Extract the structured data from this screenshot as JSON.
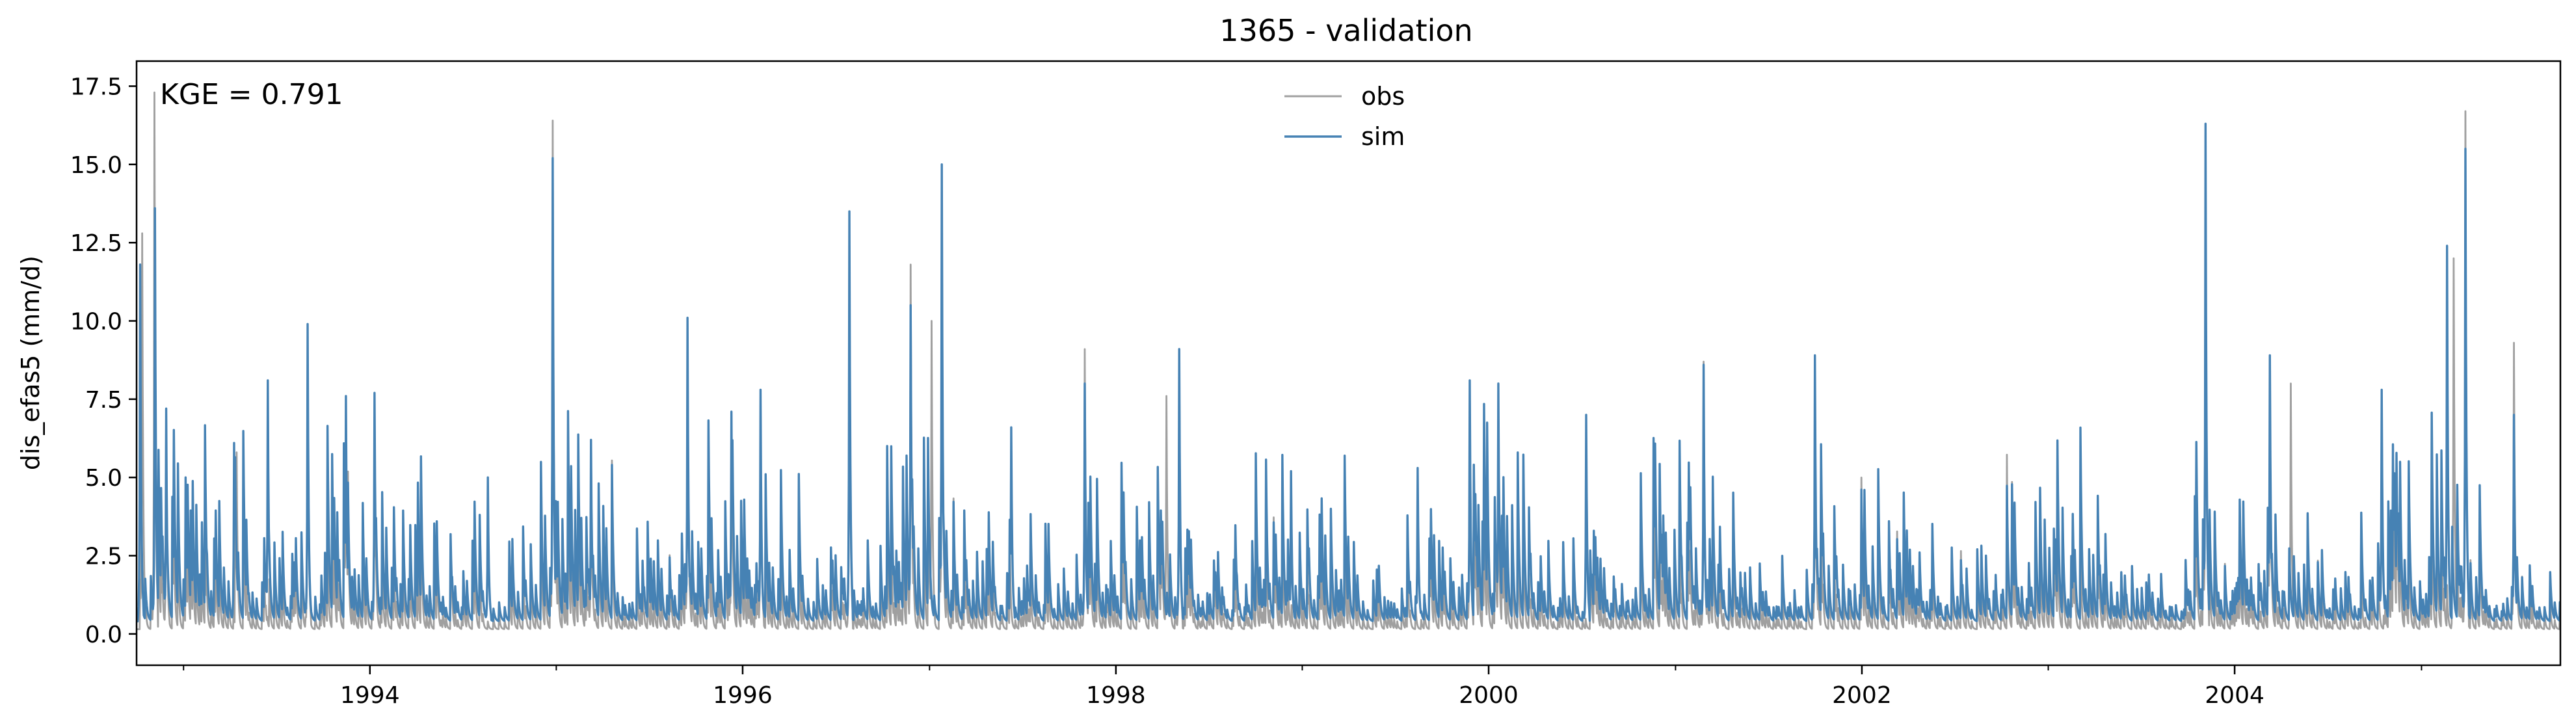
{
  "chart_data": {
    "type": "line",
    "title": "1365 - validation",
    "xlabel": "",
    "ylabel": "dis_efas5 (mm/d)",
    "xlim": [
      "1992-10-01",
      "2005-09-30"
    ],
    "ylim": [
      -1.0,
      18.3
    ],
    "yticks": [
      0.0,
      2.5,
      5.0,
      7.5,
      10.0,
      12.5,
      15.0,
      17.5
    ],
    "ytick_labels": [
      "0.0",
      "2.5",
      "5.0",
      "7.5",
      "10.0",
      "12.5",
      "15.0",
      "17.5"
    ],
    "xticks": [
      "1994-01-01",
      "1996-01-01",
      "1998-01-01",
      "2000-01-01",
      "2002-01-01",
      "2004-01-01"
    ],
    "xtick_labels": [
      "1994",
      "1996",
      "1998",
      "2000",
      "2002",
      "2004"
    ],
    "grid": false,
    "legend": "top-center",
    "annotation": "KGE = 0.791",
    "series": [
      {
        "name": "obs",
        "color": "#a0a0a0",
        "baseline": 0.15,
        "peaks": [
          {
            "x": "1992-10-12",
            "y": 12.8
          },
          {
            "x": "1992-11-05",
            "y": 17.3
          },
          {
            "x": "1992-11-28",
            "y": 7.2
          },
          {
            "x": "1993-04-15",
            "y": 5.8
          },
          {
            "x": "1993-09-01",
            "y": 9.0
          },
          {
            "x": "1993-11-15",
            "y": 7.5
          },
          {
            "x": "1994-01-10",
            "y": 6.5
          },
          {
            "x": "1994-12-25",
            "y": 16.4
          },
          {
            "x": "1995-03-10",
            "y": 6.2
          },
          {
            "x": "1995-09-15",
            "y": 10.0
          },
          {
            "x": "1995-12-10",
            "y": 7.0
          },
          {
            "x": "1996-02-05",
            "y": 7.8
          },
          {
            "x": "1996-07-28",
            "y": 12.0
          },
          {
            "x": "1996-11-25",
            "y": 11.8
          },
          {
            "x": "1997-01-05",
            "y": 10.0
          },
          {
            "x": "1997-01-25",
            "y": 14.5
          },
          {
            "x": "1997-11-01",
            "y": 9.1
          },
          {
            "x": "1998-04-10",
            "y": 7.6
          },
          {
            "x": "1998-05-05",
            "y": 9.0
          },
          {
            "x": "1999-11-25",
            "y": 8.0
          },
          {
            "x": "2000-01-20",
            "y": 6.0
          },
          {
            "x": "2001-02-25",
            "y": 8.7
          },
          {
            "x": "2001-10-01",
            "y": 8.5
          },
          {
            "x": "2003-11-05",
            "y": 16.0
          },
          {
            "x": "2004-03-10",
            "y": 8.8
          },
          {
            "x": "2004-04-20",
            "y": 8.0
          },
          {
            "x": "2005-03-05",
            "y": 12.0
          },
          {
            "x": "2005-03-28",
            "y": 16.7
          },
          {
            "x": "2005-07-01",
            "y": 9.3
          }
        ]
      },
      {
        "name": "sim",
        "color": "#4682b4",
        "baseline": 0.4,
        "peaks": [
          {
            "x": "1992-10-08",
            "y": 11.8
          },
          {
            "x": "1992-11-06",
            "y": 13.6
          },
          {
            "x": "1992-11-28",
            "y": 7.2
          },
          {
            "x": "1993-04-10",
            "y": 6.1
          },
          {
            "x": "1993-06-15",
            "y": 8.1
          },
          {
            "x": "1993-09-01",
            "y": 9.9
          },
          {
            "x": "1993-11-15",
            "y": 7.6
          },
          {
            "x": "1994-01-10",
            "y": 7.7
          },
          {
            "x": "1994-08-20",
            "y": 5.0
          },
          {
            "x": "1994-12-25",
            "y": 15.2
          },
          {
            "x": "1995-03-10",
            "y": 6.2
          },
          {
            "x": "1995-09-15",
            "y": 10.1
          },
          {
            "x": "1995-12-10",
            "y": 7.1
          },
          {
            "x": "1996-02-05",
            "y": 7.8
          },
          {
            "x": "1996-07-28",
            "y": 13.5
          },
          {
            "x": "1996-11-25",
            "y": 10.5
          },
          {
            "x": "1997-01-25",
            "y": 15.0
          },
          {
            "x": "1997-06-10",
            "y": 6.6
          },
          {
            "x": "1997-11-01",
            "y": 8.0
          },
          {
            "x": "1998-05-05",
            "y": 9.1
          },
          {
            "x": "1998-12-10",
            "y": 5.2
          },
          {
            "x": "1999-08-15",
            "y": 5.3
          },
          {
            "x": "1999-11-25",
            "y": 8.1
          },
          {
            "x": "2000-01-20",
            "y": 8.0
          },
          {
            "x": "2000-07-10",
            "y": 7.0
          },
          {
            "x": "2001-02-25",
            "y": 8.6
          },
          {
            "x": "2001-10-01",
            "y": 8.9
          },
          {
            "x": "2003-11-05",
            "y": 16.3
          },
          {
            "x": "2004-03-10",
            "y": 8.9
          },
          {
            "x": "2004-10-15",
            "y": 7.8
          },
          {
            "x": "2005-02-20",
            "y": 12.4
          },
          {
            "x": "2005-03-28",
            "y": 15.5
          },
          {
            "x": "2005-07-01",
            "y": 7.0
          }
        ]
      }
    ]
  }
}
